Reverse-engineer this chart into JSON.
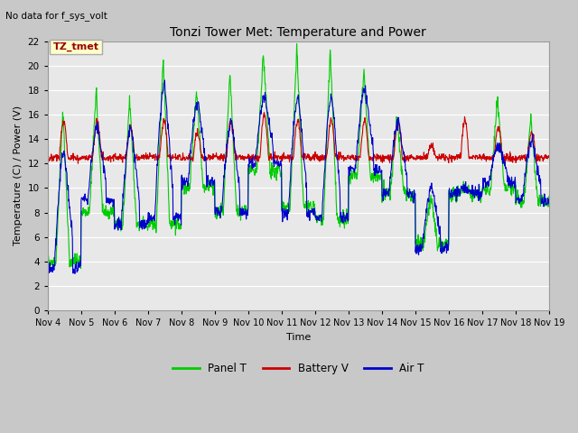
{
  "title": "Tonzi Tower Met: Temperature and Power",
  "subtitle": "No data for f_sys_volt",
  "xlabel": "Time",
  "ylabel": "Temperature (C) / Power (V)",
  "ylim": [
    0,
    22
  ],
  "yticks": [
    0,
    2,
    4,
    6,
    8,
    10,
    12,
    14,
    16,
    18,
    20,
    22
  ],
  "xtick_labels": [
    "Nov 4",
    "Nov 5",
    "Nov 6",
    "Nov 7",
    "Nov 8",
    "Nov 9",
    "Nov 10",
    "Nov 11",
    "Nov 12",
    "Nov 13",
    "Nov 14",
    "Nov 15",
    "Nov 16",
    "Nov 17",
    "Nov 18",
    "Nov 19"
  ],
  "fig_bg_color": "#c8c8c8",
  "plot_bg_color": "#e8e8e8",
  "grid_color": "#ffffff",
  "legend_entries": [
    "Panel T",
    "Battery V",
    "Air T"
  ],
  "legend_colors": [
    "#00cc00",
    "#cc0000",
    "#0000cc"
  ],
  "annotation_text": "TZ_tmet",
  "annotation_box_color": "#ffffcc",
  "annotation_box_edge": "#aaaaaa",
  "panel_t_color": "#00cc00",
  "battery_v_color": "#cc0000",
  "air_t_color": "#0000cc",
  "n_days": 15,
  "pts_per_day": 96,
  "panel_peaks": [
    16.5,
    18.0,
    17.5,
    20.5,
    18.0,
    19.5,
    21.0,
    21.5,
    21.5,
    19.5,
    16.0,
    9.5,
    10.0,
    17.5,
    16.0
  ],
  "panel_troughs": [
    4.0,
    8.0,
    7.0,
    7.0,
    10.0,
    8.0,
    11.5,
    8.5,
    7.5,
    11.0,
    9.5,
    5.5,
    9.5,
    10.0,
    9.0
  ],
  "battery_peaks": [
    15.5,
    15.5,
    15.0,
    15.5,
    14.5,
    15.5,
    16.0,
    15.5,
    15.5,
    15.5,
    15.5,
    13.5,
    15.5,
    15.0,
    14.5
  ],
  "battery_base": [
    12.5,
    12.5,
    12.5,
    12.5,
    12.5,
    12.5,
    12.5,
    12.5,
    12.5,
    12.5,
    12.5,
    12.5,
    12.5,
    12.5,
    12.5
  ],
  "air_peaks": [
    13.0,
    15.0,
    15.0,
    18.5,
    17.0,
    15.5,
    17.5,
    17.5,
    17.5,
    18.0,
    15.5,
    10.0,
    10.0,
    13.5,
    14.0
  ],
  "air_troughs": [
    3.5,
    9.0,
    7.0,
    7.5,
    10.5,
    8.0,
    12.0,
    8.0,
    7.5,
    11.5,
    9.5,
    5.0,
    9.5,
    10.5,
    9.0
  ]
}
